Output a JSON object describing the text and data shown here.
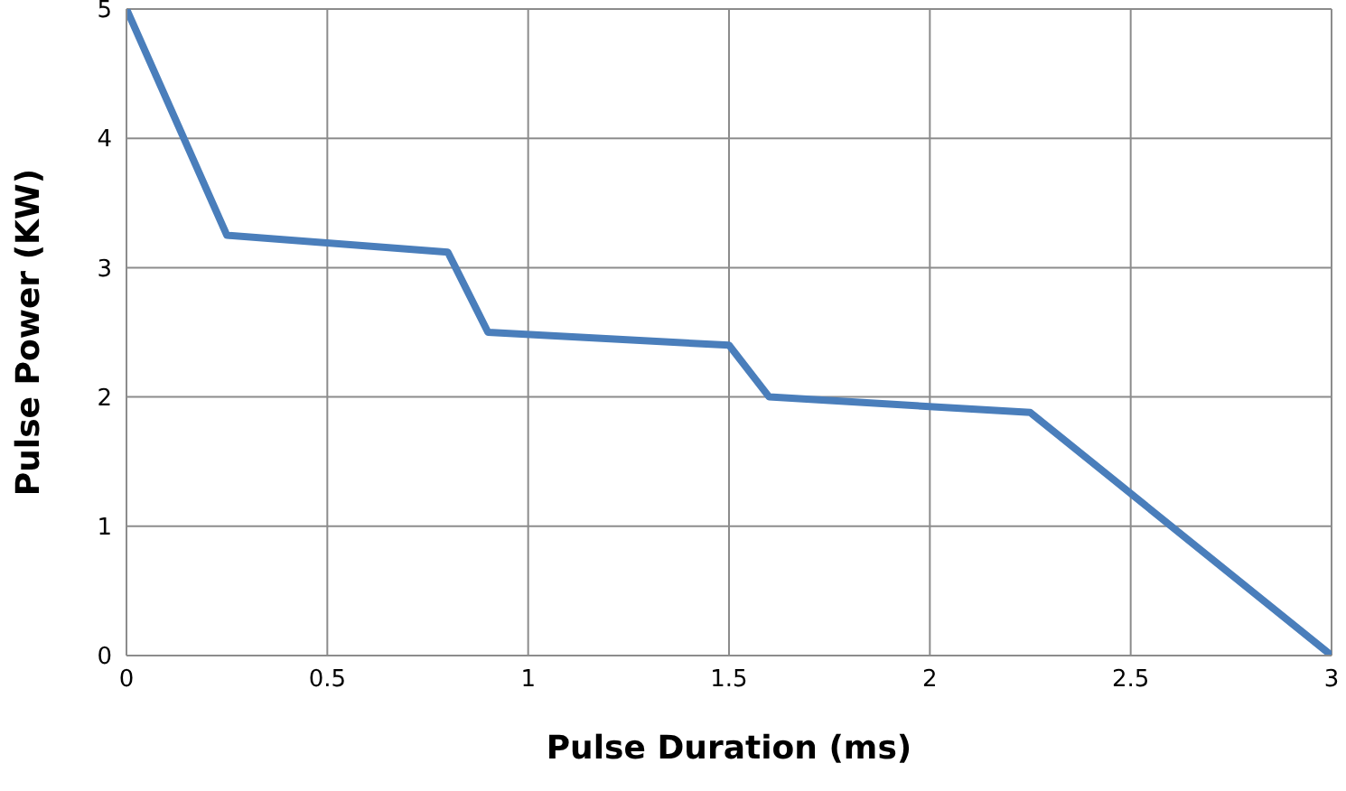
{
  "chart_data": {
    "type": "line",
    "xlabel": "Pulse Duration (ms)",
    "ylabel": "Pulse Power (KW)",
    "x": [
      0,
      0.25,
      0.8,
      0.9,
      1.5,
      1.6,
      2.25,
      3
    ],
    "series": [
      {
        "color": "#4a7ebb",
        "values": [
          5,
          3.25,
          3.12,
          2.5,
          2.4,
          2.0,
          1.88,
          0
        ]
      }
    ],
    "xlim": [
      0,
      3
    ],
    "xticks": [
      0,
      0.5,
      1,
      1.5,
      2,
      2.5,
      3
    ],
    "ylim": [
      0,
      5
    ],
    "yticks": [
      0,
      1,
      2,
      3,
      4,
      5
    ],
    "grid": true,
    "marker": "none",
    "line_style": "solid"
  }
}
